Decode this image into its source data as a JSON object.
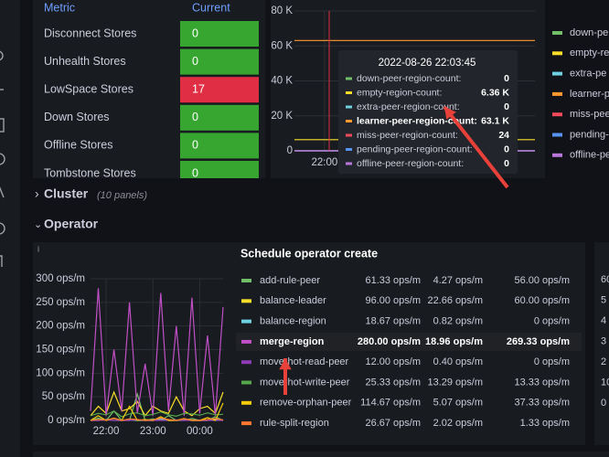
{
  "store_table": {
    "headers": [
      "Metric",
      "Current"
    ],
    "rows": [
      [
        "Disconnect Stores",
        0
      ],
      [
        "Unhealth Stores",
        0
      ],
      [
        "LowSpace Stores",
        17
      ],
      [
        "Down Stores",
        0
      ],
      [
        "Offline Stores",
        0
      ],
      [
        "Tombstone Stores",
        0
      ]
    ]
  },
  "rows": [
    {
      "title": "Cluster",
      "note": "(10 panels)"
    },
    {
      "title": "Operator"
    }
  ],
  "chart_data": [
    {
      "type": "line",
      "ylim": [
        0,
        80000
      ],
      "yticks": [
        0,
        {
          "value": 20000,
          "label": "20 K"
        },
        {
          "value": 40000,
          "label": "40 K"
        },
        {
          "value": 60000,
          "label": "60 K"
        },
        {
          "value": 80000,
          "label": "80 K"
        }
      ],
      "categories": [
        null,
        "22:00",
        null,
        null,
        null,
        null,
        null,
        null,
        null
      ],
      "series": [
        {
          "name": "down-pe",
          "color": "#73bf69",
          "values": [
            0,
            0,
            0,
            0,
            0,
            0,
            0,
            0,
            0
          ]
        },
        {
          "name": "empty-re",
          "color": "#fade2a",
          "values": [
            6360,
            6360,
            6360,
            6360,
            6360,
            6360,
            6360,
            6360,
            6360
          ]
        },
        {
          "name": "extra-pe",
          "color": "#6ed0e0",
          "values": [
            0,
            0,
            0,
            0,
            0,
            0,
            0,
            0,
            0
          ]
        },
        {
          "name": "learner-pe",
          "color": "#ff9830",
          "values": [
            63100,
            63100,
            63100,
            63100,
            63100,
            63100,
            63100,
            63100,
            63100
          ]
        },
        {
          "name": "miss-pee",
          "color": "#f2495c",
          "values": [
            24,
            24,
            24,
            24,
            24,
            24,
            24,
            24,
            24
          ]
        },
        {
          "name": "pending-p",
          "color": "#5794f2",
          "values": [
            0,
            0,
            0,
            0,
            0,
            0,
            0,
            0,
            0
          ]
        },
        {
          "name": "offline-pe",
          "color": "#b877d9",
          "values": [
            0,
            0,
            0,
            0,
            0,
            0,
            0,
            0,
            0
          ]
        }
      ],
      "tooltip": {
        "title": "2022-08-26 22:03:45",
        "rows": [
          {
            "name": "down-peer-region-count:",
            "value": 0
          },
          {
            "name": "empty-region-count:",
            "value": {
              "value": 6360,
              "label": "6.36 K"
            }
          },
          {
            "name": "extra-peer-region-count:",
            "value": 0
          },
          {
            "name": "learner-peer-region-count:",
            "value": {
              "value": 63100,
              "label": "63.1 K"
            }
          },
          {
            "name": "miss-peer-region-count:",
            "value": 24
          },
          {
            "name": "pending-peer-region-count:",
            "value": 0
          },
          {
            "name": "offline-peer-region-count:",
            "value": 0
          }
        ]
      }
    },
    {
      "type": "line",
      "title": "Schedule operator create",
      "ylim": [
        0,
        300
      ],
      "yticks": [
        {
          "value": 0,
          "label": "0 ops/m"
        },
        {
          "value": 50,
          "label": "50 ops/m"
        },
        {
          "value": 100,
          "label": "100 ops/m"
        },
        {
          "value": 150,
          "label": "150 ops/m"
        },
        {
          "value": 200,
          "label": "200 ops/m"
        },
        {
          "value": 250,
          "label": "250 ops/m"
        },
        {
          "value": 300,
          "label": "300 ops/m"
        }
      ],
      "categories": [
        null,
        null,
        "22:00",
        null,
        null,
        null,
        null,
        null,
        "23:00",
        null,
        null,
        null,
        null,
        null,
        "00:00",
        null,
        null,
        null
      ],
      "series": [
        {
          "name": "add-rule-peer",
          "color": "#73bf69",
          "values": [
            0,
            5,
            0,
            20,
            0,
            0,
            56,
            0,
            3,
            0,
            10,
            0,
            0,
            4,
            0,
            0,
            8,
            0
          ],
          "legend_values": [
            {
              "value": 61.33,
              "label": "61.33 ops/m"
            },
            {
              "value": 4.27,
              "label": "4.27 ops/m"
            },
            {
              "value": 56,
              "label": "56.00 ops/m"
            }
          ]
        },
        {
          "name": "balance-leader",
          "color": "#fade2a",
          "values": [
            10,
            30,
            15,
            60,
            20,
            25,
            40,
            10,
            30,
            20,
            15,
            50,
            20,
            10,
            25,
            30,
            15,
            60
          ],
          "legend_values": [
            {
              "value": 96,
              "label": "96.00 ops/m"
            },
            {
              "value": 22.66,
              "label": "22.66 ops/m"
            },
            {
              "value": 60,
              "label": "60.00 ops/m"
            }
          ]
        },
        {
          "name": "balance-region",
          "color": "#6ed0e0",
          "values": [
            0,
            0,
            2,
            0,
            0,
            1,
            0,
            0,
            0,
            3,
            0,
            0,
            1,
            0,
            0,
            0,
            2,
            0
          ],
          "legend_values": [
            {
              "value": 18.67,
              "label": "18.67 ops/m"
            },
            {
              "value": 0.82,
              "label": "0.82 ops/m"
            },
            {
              "value": 0,
              "label": "0 ops/m"
            }
          ]
        },
        {
          "name": "merge-region",
          "color": "#c14fc7",
          "values": [
            20,
            280,
            10,
            150,
            20,
            250,
            15,
            120,
            10,
            270,
            20,
            200,
            10,
            260,
            15,
            180,
            10,
            240
          ],
          "legend_values": [
            {
              "value": 280,
              "label": "280.00 ops/m"
            },
            {
              "value": 18.96,
              "label": "18.96 ops/m"
            },
            {
              "value": 269.33,
              "label": "269.33 ops/m"
            }
          ]
        },
        {
          "name": "move-hot-read-peer",
          "color": "#8f3bb8",
          "values": [
            0,
            0,
            1,
            0,
            0,
            0,
            2,
            0,
            0,
            0,
            0,
            1,
            0,
            0,
            0,
            0,
            0,
            0
          ],
          "legend_values": [
            {
              "value": 12,
              "label": "12.00 ops/m"
            },
            {
              "value": 0.4,
              "label": "0.40 ops/m"
            },
            {
              "value": 0,
              "label": "0 ops/m"
            }
          ]
        },
        {
          "name": "move-hot-write-peer",
          "color": "#56a64b",
          "values": [
            10,
            15,
            12,
            20,
            8,
            14,
            16,
            10,
            13,
            18,
            12,
            9,
            15,
            14,
            11,
            16,
            12,
            13
          ],
          "legend_values": [
            {
              "value": 25.33,
              "label": "25.33 ops/m"
            },
            {
              "value": 13.29,
              "label": "13.29 ops/m"
            },
            {
              "value": 13.33,
              "label": "13.33 ops/m"
            }
          ]
        },
        {
          "name": "remove-orphan-peer",
          "color": "#f2cc0c",
          "values": [
            0,
            10,
            0,
            5,
            0,
            30,
            0,
            2,
            0,
            8,
            0,
            0,
            4,
            0,
            0,
            6,
            0,
            37
          ],
          "legend_values": [
            {
              "value": 114.67,
              "label": "114.67 ops/m"
            },
            {
              "value": 5.07,
              "label": "5.07 ops/m"
            },
            {
              "value": 37.33,
              "label": "37.33 ops/m"
            }
          ]
        },
        {
          "name": "rule-split-region",
          "color": "#ff7830",
          "values": [
            0,
            2,
            1,
            4,
            0,
            3,
            2,
            0,
            1,
            5,
            2,
            0,
            3,
            1,
            0,
            2,
            4,
            1
          ],
          "legend_values": [
            {
              "value": 26.67,
              "label": "26.67 ops/m"
            },
            {
              "value": 2.02,
              "label": "2.02 ops/m"
            },
            {
              "value": 1.33,
              "label": "1.33 ops/m"
            }
          ]
        }
      ]
    }
  ],
  "clipped_panel_labels": [
    "60",
    "5",
    "4",
    "3",
    "2",
    "10",
    "0"
  ]
}
